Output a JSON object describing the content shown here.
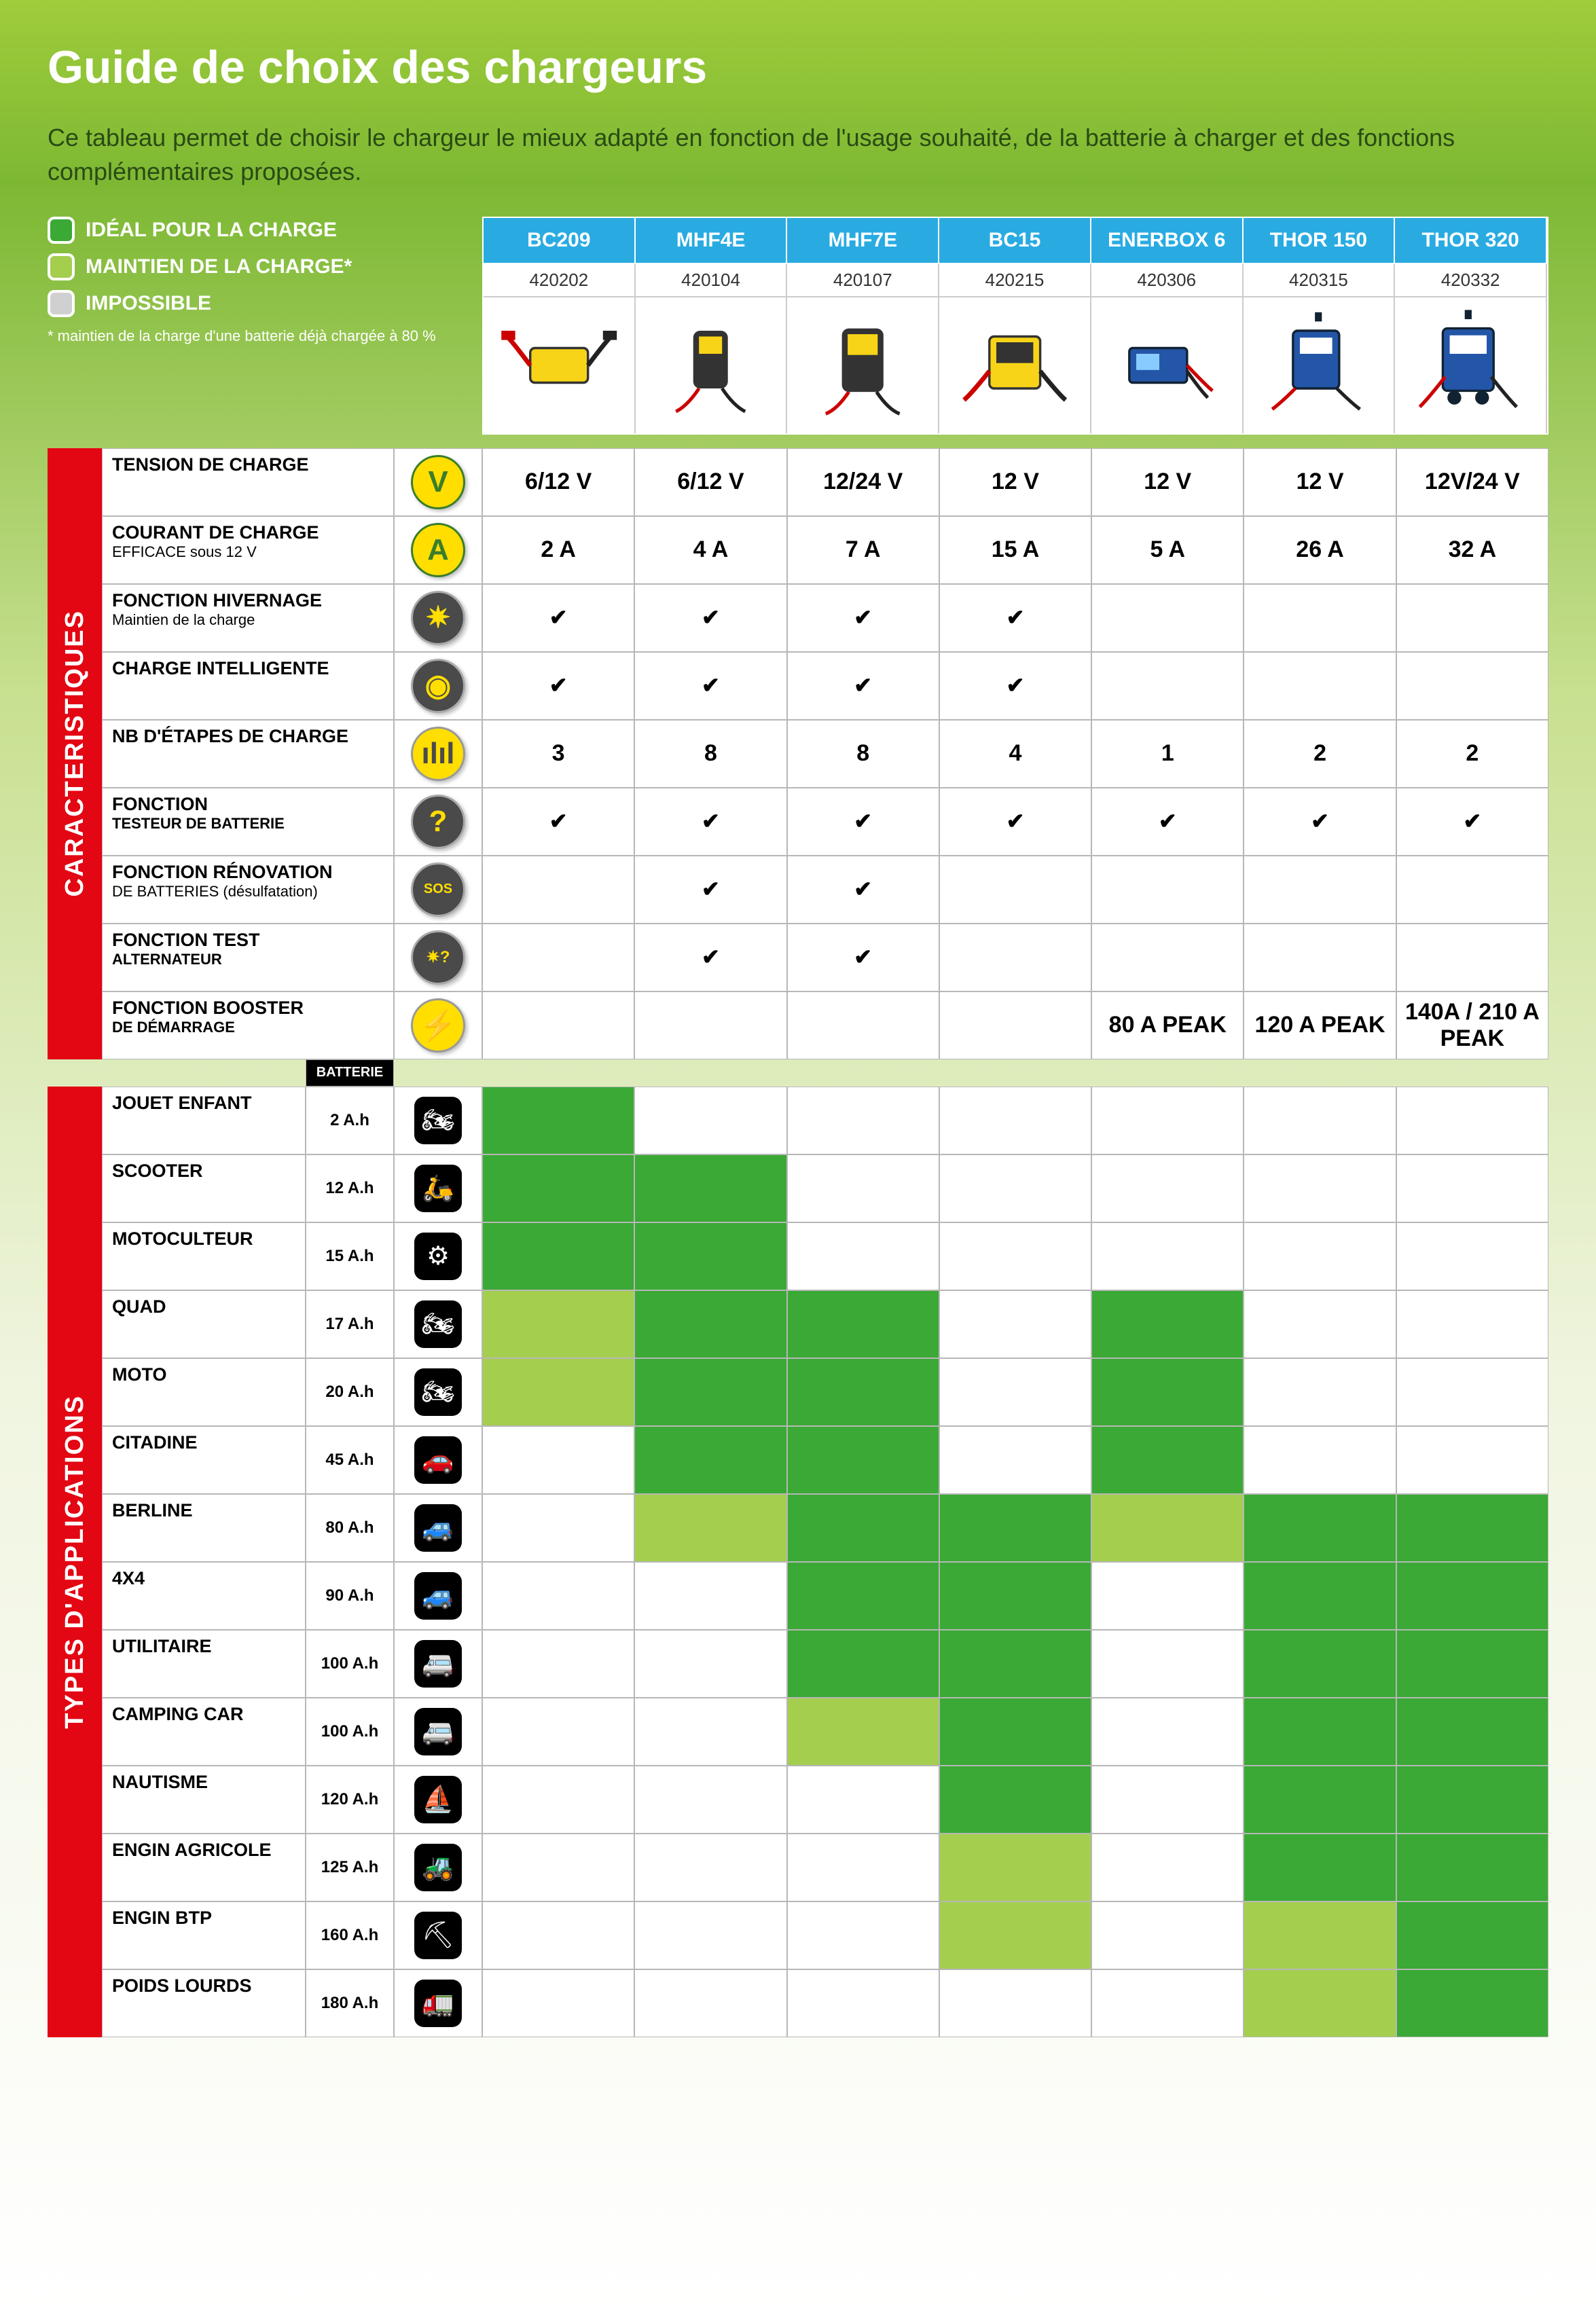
{
  "title": "Guide de choix des chargeurs",
  "intro": "Ce tableau permet de choisir le chargeur le mieux adapté en fonction de l'usage souhaité, de la batterie à charger et des fonctions complémentaires proposées.",
  "legend": {
    "ideal": {
      "label": "IDÉAL POUR LA CHARGE",
      "color": "#3aa935"
    },
    "maint": {
      "label": "MAINTIEN DE LA CHARGE*",
      "color": "#a4ce4e"
    },
    "imposs": {
      "label": "IMPOSSIBLE",
      "color": "#d0d0d0"
    },
    "footnote": "* maintien de la charge d'une batterie déjà chargée à 80 %"
  },
  "products": [
    {
      "name": "BC209",
      "code": "420202"
    },
    {
      "name": "MHF4E",
      "code": "420104"
    },
    {
      "name": "MHF7E",
      "code": "420107"
    },
    {
      "name": "BC15",
      "code": "420215"
    },
    {
      "name": "ENERBOX 6",
      "code": "420306"
    },
    {
      "name": "THOR 150",
      "code": "420315"
    },
    {
      "name": "THOR 320",
      "code": "420332"
    }
  ],
  "sections": {
    "charac": "CARACTERISTIQUES",
    "apps": "TYPES D'APPLICATIONS"
  },
  "characteristics": [
    {
      "label": "TENSION DE CHARGE",
      "sub": "",
      "icon": "V",
      "iconClass": "circ-y",
      "vals": [
        "6/12 V",
        "6/12 V",
        "12/24 V",
        "12 V",
        "12 V",
        "12 V",
        "12V/24 V"
      ]
    },
    {
      "label": "COURANT DE CHARGE",
      "sub": "EFFICACE sous 12 V",
      "icon": "A",
      "iconClass": "circ-a",
      "vals": [
        "2 A",
        "4 A",
        "7 A",
        "15 A",
        "5 A",
        "26 A",
        "32 A"
      ]
    },
    {
      "label": "FONCTION HIVERNAGE",
      "sub": "Maintien de la charge",
      "icon": "✷",
      "iconClass": "circ-d",
      "vals": [
        "✔",
        "✔",
        "✔",
        "✔",
        "",
        "",
        ""
      ]
    },
    {
      "label": "CHARGE INTELLIGENTE",
      "sub": "",
      "icon": "◉",
      "iconClass": "circ-d",
      "vals": [
        "✔",
        "✔",
        "✔",
        "✔",
        "",
        "",
        ""
      ]
    },
    {
      "label": "NB D'ÉTAPES DE CHARGE",
      "sub": "",
      "icon": "ılıl",
      "iconClass": "circ-l",
      "vals": [
        "3",
        "8",
        "8",
        "4",
        "1",
        "2",
        "2"
      ]
    },
    {
      "label": "FONCTION",
      "sub": "TESTEUR DE BATTERIE",
      "icon": "?",
      "iconClass": "circ-d",
      "vals": [
        "✔",
        "✔",
        "✔",
        "✔",
        "✔",
        "✔",
        "✔"
      ],
      "subBold": true
    },
    {
      "label": "FONCTION RÉNOVATION",
      "sub": "DE BATTERIES (désulfatation)",
      "icon": "SOS",
      "iconClass": "circ-d",
      "iconSize": "20px",
      "vals": [
        "",
        "✔",
        "✔",
        "",
        "",
        "",
        ""
      ]
    },
    {
      "label": "FONCTION TEST",
      "sub": "ALTERNATEUR",
      "icon": "✷?",
      "iconClass": "circ-d",
      "iconSize": "24px",
      "vals": [
        "",
        "✔",
        "✔",
        "",
        "",
        "",
        ""
      ],
      "subBold": true
    },
    {
      "label": "FONCTION BOOSTER",
      "sub": "DE DÉMARRAGE",
      "icon": "⚡",
      "iconClass": "circ-l",
      "vals": [
        "",
        "",
        "",
        "",
        "80 A PEAK",
        "120 A PEAK",
        "140A / 210 A PEAK"
      ],
      "subBold": true
    }
  ],
  "batterie_label": "BATTERIE",
  "applications": [
    {
      "label": "JOUET ENFANT",
      "batt": "2 A.h",
      "icon": "🏍",
      "cells": [
        "ideal",
        "",
        "",
        "",
        "",
        "",
        ""
      ]
    },
    {
      "label": "SCOOTER",
      "batt": "12 A.h",
      "icon": "🛵",
      "cells": [
        "ideal",
        "ideal",
        "",
        "",
        "",
        "",
        ""
      ]
    },
    {
      "label": "MOTOCULTEUR",
      "batt": "15 A.h",
      "icon": "⚙",
      "cells": [
        "ideal",
        "ideal",
        "",
        "",
        "",
        "",
        ""
      ]
    },
    {
      "label": "QUAD",
      "batt": "17 A.h",
      "icon": "🏍",
      "cells": [
        "maint",
        "ideal",
        "ideal",
        "",
        "ideal",
        "",
        ""
      ]
    },
    {
      "label": "MOTO",
      "batt": "20 A.h",
      "icon": "🏍",
      "cells": [
        "maint",
        "ideal",
        "ideal",
        "",
        "ideal",
        "",
        ""
      ]
    },
    {
      "label": "CITADINE",
      "batt": "45 A.h",
      "icon": "🚗",
      "cells": [
        "",
        "ideal",
        "ideal",
        "",
        "ideal",
        "",
        ""
      ]
    },
    {
      "label": "BERLINE",
      "batt": "80 A.h",
      "icon": "🚙",
      "cells": [
        "",
        "maint",
        "ideal",
        "ideal",
        "maint",
        "ideal",
        "ideal"
      ]
    },
    {
      "label": "4X4",
      "batt": "90 A.h",
      "icon": "🚙",
      "cells": [
        "",
        "",
        "ideal",
        "ideal",
        "",
        "ideal",
        "ideal"
      ]
    },
    {
      "label": "UTILITAIRE",
      "batt": "100 A.h",
      "icon": "🚐",
      "cells": [
        "",
        "",
        "ideal",
        "ideal",
        "",
        "ideal",
        "ideal"
      ]
    },
    {
      "label": "CAMPING CAR",
      "batt": "100 A.h",
      "icon": "🚐",
      "cells": [
        "",
        "",
        "maint",
        "ideal",
        "",
        "ideal",
        "ideal"
      ]
    },
    {
      "label": "NAUTISME",
      "batt": "120 A.h",
      "icon": "⛵",
      "cells": [
        "",
        "",
        "",
        "ideal",
        "",
        "ideal",
        "ideal"
      ]
    },
    {
      "label": "ENGIN AGRICOLE",
      "batt": "125 A.h",
      "icon": "🚜",
      "cells": [
        "",
        "",
        "",
        "maint",
        "",
        "ideal",
        "ideal"
      ]
    },
    {
      "label": "ENGIN BTP",
      "batt": "160 A.h",
      "icon": "⛏",
      "cells": [
        "",
        "",
        "",
        "maint",
        "",
        "maint",
        "ideal"
      ]
    },
    {
      "label": "POIDS LOURDS",
      "batt": "180 A.h",
      "icon": "🚛",
      "cells": [
        "",
        "",
        "",
        "",
        "",
        "maint",
        "ideal"
      ]
    }
  ],
  "colors": {
    "ideal": "#3aa935",
    "maint": "#a4ce4e",
    "imposs": "#d0d0d0",
    "header_blue": "#29abe2",
    "red_tab": "#e30613"
  }
}
